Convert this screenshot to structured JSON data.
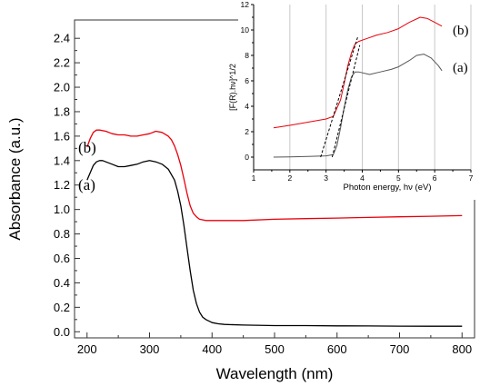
{
  "chart_data": [
    {
      "type": "line",
      "title": "",
      "xlabel": "Wavelength (nm)",
      "ylabel": "Absorbance (a.u.)",
      "xlim": [
        180,
        820
      ],
      "ylim": [
        -0.05,
        2.55
      ],
      "xticks": [
        200,
        300,
        400,
        500,
        600,
        700,
        800
      ],
      "yticks": [
        0.0,
        0.2,
        0.4,
        0.6,
        0.8,
        1.0,
        1.2,
        1.4,
        1.6,
        1.8,
        2.0,
        2.2,
        2.4
      ],
      "grid": false,
      "series": [
        {
          "name": "(b)",
          "color": "#e8000b",
          "x": [
            200,
            205,
            210,
            215,
            220,
            230,
            240,
            250,
            260,
            270,
            280,
            290,
            300,
            310,
            320,
            330,
            335,
            340,
            345,
            350,
            355,
            360,
            365,
            370,
            375,
            380,
            390,
            400,
            450,
            500,
            550,
            600,
            650,
            700,
            750,
            800
          ],
          "values": [
            1.51,
            1.58,
            1.63,
            1.65,
            1.65,
            1.64,
            1.62,
            1.61,
            1.61,
            1.6,
            1.6,
            1.61,
            1.62,
            1.64,
            1.63,
            1.6,
            1.57,
            1.52,
            1.45,
            1.36,
            1.25,
            1.13,
            1.03,
            0.97,
            0.94,
            0.92,
            0.91,
            0.91,
            0.91,
            0.92,
            0.925,
            0.93,
            0.935,
            0.94,
            0.945,
            0.95
          ]
        },
        {
          "name": "(a)",
          "color": "#000000",
          "x": [
            200,
            205,
            210,
            215,
            220,
            225,
            230,
            240,
            250,
            260,
            270,
            280,
            290,
            300,
            310,
            320,
            330,
            340,
            345,
            350,
            355,
            360,
            365,
            370,
            375,
            380,
            385,
            390,
            400,
            410,
            420,
            450,
            500,
            550,
            600,
            650,
            700,
            750,
            800
          ],
          "values": [
            1.24,
            1.3,
            1.36,
            1.39,
            1.4,
            1.4,
            1.39,
            1.37,
            1.35,
            1.35,
            1.36,
            1.37,
            1.39,
            1.4,
            1.39,
            1.37,
            1.33,
            1.24,
            1.15,
            1.03,
            0.87,
            0.68,
            0.5,
            0.34,
            0.23,
            0.16,
            0.12,
            0.1,
            0.075,
            0.065,
            0.06,
            0.055,
            0.05,
            0.05,
            0.048,
            0.047,
            0.046,
            0.045,
            0.045
          ]
        }
      ]
    },
    {
      "type": "line",
      "title": "",
      "xlabel": "Photon energy, hν (eV)",
      "ylabel": "[F(R).hν]^1/2",
      "xlim": [
        1,
        7
      ],
      "ylim": [
        -1,
        12
      ],
      "xticks": [
        1,
        2,
        3,
        4,
        5,
        6,
        7
      ],
      "yticks": [
        0,
        2,
        4,
        6,
        8,
        10,
        12
      ],
      "grid": true,
      "series": [
        {
          "name": "(b)",
          "color": "#e8000b",
          "x": [
            1.55,
            2.0,
            2.5,
            3.0,
            3.2,
            3.4,
            3.5,
            3.6,
            3.7,
            3.8,
            3.9,
            4.1,
            4.4,
            4.7,
            5.0,
            5.3,
            5.6,
            5.8,
            6.0,
            6.2
          ],
          "values": [
            2.3,
            2.5,
            2.75,
            3.0,
            3.2,
            4.5,
            5.8,
            7.2,
            8.2,
            8.9,
            9.1,
            9.3,
            9.6,
            9.8,
            10.1,
            10.6,
            11.0,
            10.9,
            10.6,
            10.3
          ]
        },
        {
          "name": "(a)",
          "color": "#555555",
          "x": [
            1.55,
            2.0,
            2.5,
            3.0,
            3.2,
            3.3,
            3.4,
            3.5,
            3.6,
            3.7,
            3.8,
            3.9,
            4.2,
            4.5,
            4.8,
            5.0,
            5.3,
            5.5,
            5.7,
            5.9,
            6.1,
            6.2
          ],
          "values": [
            0.0,
            0.02,
            0.05,
            0.1,
            0.2,
            0.9,
            2.3,
            3.9,
            5.3,
            6.3,
            6.7,
            6.7,
            6.5,
            6.7,
            6.9,
            7.1,
            7.6,
            8.0,
            8.1,
            7.8,
            7.2,
            6.8
          ]
        }
      ],
      "tangents": [
        {
          "x": [
            2.85,
            3.88
          ],
          "values": [
            0.0,
            9.5
          ]
        },
        {
          "x": [
            3.17,
            3.93
          ],
          "values": [
            0.0,
            8.8
          ]
        }
      ]
    }
  ]
}
